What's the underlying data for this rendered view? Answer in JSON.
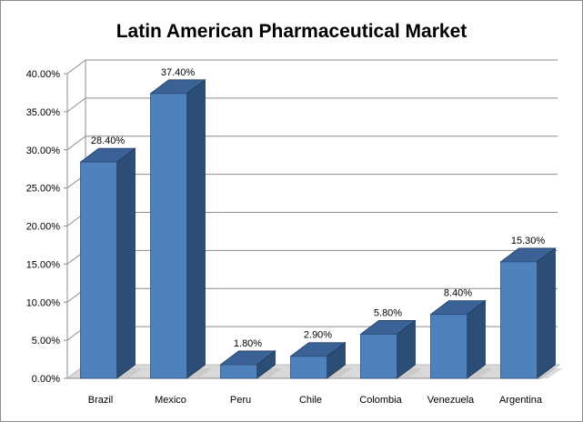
{
  "chart_data": {
    "type": "bar",
    "title": "Latin American Pharmaceutical Market",
    "xlabel": "",
    "ylabel": "",
    "categories": [
      "Brazil",
      "Mexico",
      "Peru",
      "Chile",
      "Colombia",
      "Venezuela",
      "Argentina"
    ],
    "values": [
      28.4,
      37.4,
      1.8,
      2.9,
      5.8,
      8.4,
      15.3
    ],
    "value_labels": [
      "28.40%",
      "37.40%",
      "1.80%",
      "2.90%",
      "5.80%",
      "8.40%",
      "15.30%"
    ],
    "y_ticks": [
      0,
      5,
      10,
      15,
      20,
      25,
      30,
      35,
      40
    ],
    "y_tick_labels": [
      "0.00%",
      "5.00%",
      "10.00%",
      "15.00%",
      "20.00%",
      "25.00%",
      "30.00%",
      "35.00%",
      "40.00%"
    ],
    "ylim": [
      0,
      40
    ],
    "grid": true,
    "legend": "none",
    "style": "3d-column",
    "colors": {
      "bar_front": "#4f81bd",
      "bar_side": "#2c4d75",
      "bar_top": "#3a6296",
      "gridline": "#8c8c8c",
      "floor": "#d9d9d9"
    }
  }
}
